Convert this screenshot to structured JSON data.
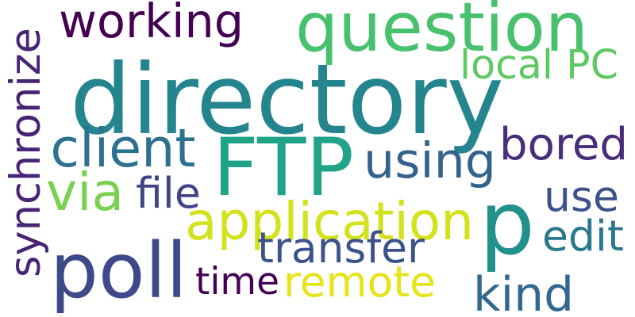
{
  "words": [
    {
      "id": "directory",
      "text": "directory",
      "color": "#25858e",
      "vertical": false
    },
    {
      "id": "question",
      "text": "question",
      "color": "#48c16e",
      "vertical": false
    },
    {
      "id": "working",
      "text": "working",
      "color": "#440154",
      "vertical": false
    },
    {
      "id": "synchronize",
      "text": "synchronize",
      "color": "#482475",
      "vertical": true
    },
    {
      "id": "local-pc",
      "text": "local PC",
      "color": "#5ec962",
      "vertical": false
    },
    {
      "id": "ftp",
      "text": "FTP",
      "color": "#20a386",
      "vertical": false
    },
    {
      "id": "p",
      "text": "p",
      "color": "#21918c",
      "vertical": false
    },
    {
      "id": "client",
      "text": "client",
      "color": "#2c728e",
      "vertical": false
    },
    {
      "id": "bored",
      "text": "bored",
      "color": "#472d7b",
      "vertical": false
    },
    {
      "id": "using",
      "text": "using",
      "color": "#33638d",
      "vertical": false
    },
    {
      "id": "via",
      "text": "via",
      "color": "#7ad151",
      "vertical": false
    },
    {
      "id": "file",
      "text": "file",
      "color": "#414487",
      "vertical": false
    },
    {
      "id": "use",
      "text": "use",
      "color": "#3b528b",
      "vertical": false
    },
    {
      "id": "application",
      "text": "application",
      "color": "#d2e21b",
      "vertical": false
    },
    {
      "id": "poll",
      "text": "poll",
      "color": "#3e4989",
      "vertical": false
    },
    {
      "id": "transfer",
      "text": "transfer",
      "color": "#3b528b",
      "vertical": false
    },
    {
      "id": "edit",
      "text": "edit",
      "color": "#2a788e",
      "vertical": false
    },
    {
      "id": "time",
      "text": "time",
      "color": "#440154",
      "vertical": false
    },
    {
      "id": "remote",
      "text": "remote",
      "color": "#e5e419",
      "vertical": false
    },
    {
      "id": "kind",
      "text": "kind",
      "color": "#31688e",
      "vertical": false
    }
  ]
}
